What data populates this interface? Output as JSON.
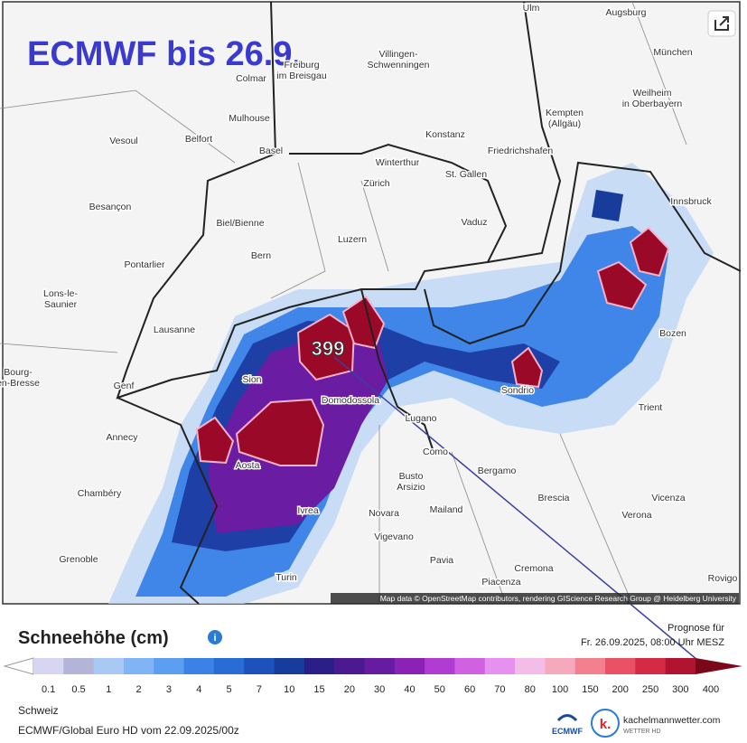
{
  "map": {
    "title": "ECMWF bis 26.9.",
    "peak_label": "399",
    "attribution": "Map data © OpenStreetMap contributors, rendering GIScience Research Group @ Heidelberg University",
    "cities": [
      [
        "Ulm"
      ],
      [
        "Augsburg"
      ],
      [
        "München"
      ],
      [
        "Villingen-",
        "Schwenningen"
      ],
      [
        "Freiburg",
        "im Breisgau"
      ],
      [
        "Colmar"
      ],
      [
        "Weilheim",
        "in Oberbayern"
      ],
      [
        "Kempten",
        "(Allgäu)"
      ],
      [
        "Mulhouse"
      ],
      [
        "Vesoul"
      ],
      [
        "Belfort"
      ],
      [
        "Basel"
      ],
      [
        "Konstanz"
      ],
      [
        "Friedrichshafen"
      ],
      [
        "Winterthur"
      ],
      [
        "Zürich"
      ],
      [
        "St. Gallen"
      ],
      [
        "Innsbruck"
      ],
      [
        "Besançon"
      ],
      [
        "Biel/Bienne"
      ],
      [
        "Vaduz"
      ],
      [
        "Luzern"
      ],
      [
        "Bern"
      ],
      [
        "Pontarlier"
      ],
      [
        "Lons-le-",
        "Saunier"
      ],
      [
        "Lausanne"
      ],
      [
        "Bozen"
      ],
      [
        "Bourg-",
        "en-Bresse"
      ],
      [
        "Genf"
      ],
      [
        "Sion"
      ],
      [
        "Domodossola"
      ],
      [
        "Sondrio"
      ],
      [
        "Trient"
      ],
      [
        "Lugano"
      ],
      [
        "Annecy"
      ],
      [
        "Como"
      ],
      [
        "Aosta"
      ],
      [
        "Bergamo"
      ],
      [
        "Busto",
        "Arsizio"
      ],
      [
        "Brescia"
      ],
      [
        "Chambéry"
      ],
      [
        "Vicenza"
      ],
      [
        "Ivrea"
      ],
      [
        "Novara"
      ],
      [
        "Mailand"
      ],
      [
        "Verona"
      ],
      [
        "Vigevano"
      ],
      [
        "Grenoble"
      ],
      [
        "Pavia"
      ],
      [
        "Cremona"
      ],
      [
        "Piacenza"
      ],
      [
        "Turin"
      ],
      [
        "Rovigo"
      ]
    ]
  },
  "legend": {
    "title": "Schneehöhe (cm)",
    "forecast_label": "Prognose für",
    "forecast_time": "Fr. 26.09.2025, 08:00 Uhr MESZ",
    "labels": [
      "0.1",
      "0.5",
      "1",
      "2",
      "3",
      "4",
      "5",
      "7",
      "10",
      "15",
      "20",
      "30",
      "40",
      "50",
      "60",
      "70",
      "80",
      "100",
      "150",
      "200",
      "250",
      "300",
      "400"
    ],
    "colors": [
      "#d6d6f2",
      "#b4b4d8",
      "#a9c9f5",
      "#80b4f4",
      "#5c9ef0",
      "#3b82e6",
      "#2a6cd6",
      "#1d52bd",
      "#173c9c",
      "#2a1f86",
      "#4a1a8e",
      "#661ca0",
      "#8a22b6",
      "#b03cd2",
      "#d062e2",
      "#e690f0",
      "#f4bce8",
      "#f6a8bc",
      "#f2808e",
      "#e85264",
      "#d42a44",
      "#b01430",
      "#7a0818"
    ]
  },
  "footer": {
    "region": "Schweiz",
    "model": "ECMWF/Global Euro HD vom 22.09.2025/00z"
  },
  "brand": {
    "ecmwf": "ECMWF",
    "logo_letter": "k.",
    "site": "kachelmannwetter.com",
    "tagline": "WETTER HD"
  }
}
